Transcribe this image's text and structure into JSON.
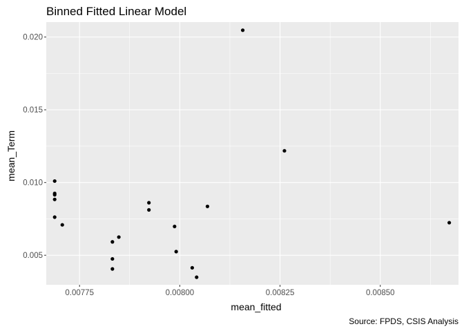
{
  "chart_data": {
    "type": "scatter",
    "title": "Binned Fitted Linear Model",
    "xlabel": "mean_fitted",
    "ylabel": "mean_Term",
    "caption": "Source: FPDS, CSIS Analysis",
    "xlim": [
      0.007667,
      0.008695
    ],
    "ylim": [
      0.00297,
      0.02103
    ],
    "x_ticks": [
      0.00775,
      0.008,
      0.00825,
      0.0085
    ],
    "x_tick_labels": [
      "0.00775",
      "0.00800",
      "0.00825",
      "0.00850"
    ],
    "y_ticks": [
      0.005,
      0.01,
      0.015,
      0.02
    ],
    "y_tick_labels": [
      "0.005",
      "0.010",
      "0.015",
      "0.020"
    ],
    "grid": true,
    "point_color": "#000000",
    "panel_color": "#ebebeb",
    "grid_color": "#ffffff",
    "points": [
      {
        "x": 0.007688,
        "y": 0.0101
      },
      {
        "x": 0.007688,
        "y": 0.00925
      },
      {
        "x": 0.007688,
        "y": 0.00916
      },
      {
        "x": 0.007688,
        "y": 0.00884
      },
      {
        "x": 0.007688,
        "y": 0.00762
      },
      {
        "x": 0.007707,
        "y": 0.00709
      },
      {
        "x": 0.007832,
        "y": 0.00592
      },
      {
        "x": 0.007832,
        "y": 0.00475
      },
      {
        "x": 0.007832,
        "y": 0.00406
      },
      {
        "x": 0.007848,
        "y": 0.00625
      },
      {
        "x": 0.007923,
        "y": 0.00861
      },
      {
        "x": 0.007923,
        "y": 0.00812
      },
      {
        "x": 0.007987,
        "y": 0.00698
      },
      {
        "x": 0.007991,
        "y": 0.00525
      },
      {
        "x": 0.008031,
        "y": 0.00414
      },
      {
        "x": 0.008042,
        "y": 0.00349
      },
      {
        "x": 0.008069,
        "y": 0.00836
      },
      {
        "x": 0.008157,
        "y": 0.02047
      },
      {
        "x": 0.008261,
        "y": 0.01218
      },
      {
        "x": 0.008672,
        "y": 0.00724
      }
    ]
  }
}
